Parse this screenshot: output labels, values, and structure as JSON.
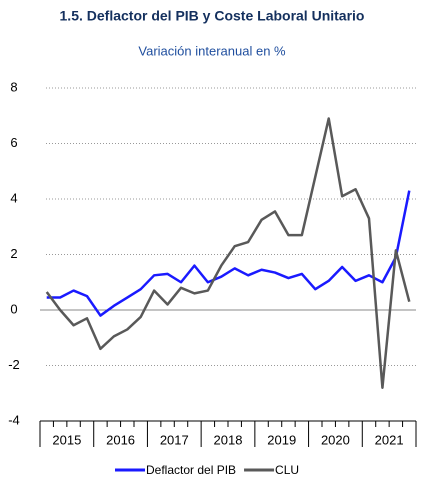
{
  "chart_data": {
    "type": "line",
    "title": "1.5. Deflactor del PIB y Coste Laboral Unitario",
    "subtitle": "Variación interanual en %",
    "groups": [
      "2015",
      "2016",
      "2017",
      "2018",
      "2019",
      "2020",
      "2021"
    ],
    "series": [
      {
        "name": "Deflactor del PIB",
        "color": "#1a1aff",
        "values": [
          0.45,
          0.45,
          0.7,
          0.5,
          -0.2,
          0.15,
          0.45,
          0.75,
          1.25,
          1.3,
          1.0,
          1.6,
          1.0,
          1.2,
          1.5,
          1.25,
          1.45,
          1.35,
          1.15,
          1.3,
          0.75,
          1.05,
          1.55,
          1.05,
          1.25,
          1.0,
          1.9,
          4.3
        ]
      },
      {
        "name": "CLU",
        "color": "#595959",
        "values": [
          0.65,
          0.0,
          -0.55,
          -0.3,
          -1.4,
          -0.95,
          -0.7,
          -0.25,
          0.7,
          0.2,
          0.8,
          0.6,
          0.7,
          1.6,
          2.3,
          2.45,
          3.25,
          3.55,
          2.7,
          2.7,
          4.8,
          6.9,
          4.1,
          4.35,
          3.3,
          -2.8,
          2.15,
          0.3
        ]
      }
    ],
    "ylim": [
      -4,
      8
    ],
    "yticks": [
      -4,
      -2,
      0,
      2,
      4,
      6,
      8
    ],
    "grid": true
  }
}
